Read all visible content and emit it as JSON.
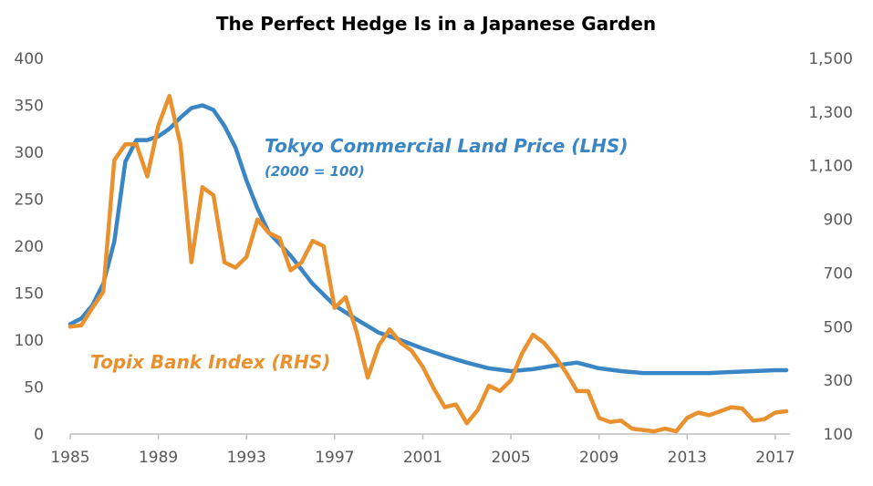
{
  "chart_data": {
    "type": "line",
    "title": "The Perfect Hedge Is in a Japanese Garden",
    "x_ticks": [
      "1985",
      "1989",
      "1993",
      "1997",
      "2001",
      "2005",
      "2009",
      "2013",
      "2017"
    ],
    "y_left_ticks": [
      "0",
      "50",
      "100",
      "150",
      "200",
      "250",
      "300",
      "350",
      "400"
    ],
    "y_right_ticks": [
      "100",
      "300",
      "500",
      "700",
      "900",
      "1,100",
      "1,300",
      "1,500"
    ],
    "y_left_lim": [
      0,
      400
    ],
    "y_right_lim": [
      100,
      1500
    ],
    "x_lim": [
      1985,
      2017.5
    ],
    "grid": false,
    "colors": {
      "land": "#3a86c5",
      "bank": "#e8912e",
      "axis": "#bfbfbf",
      "tick_text": "#595959"
    },
    "series": [
      {
        "name": "Tokyo Commercial Land Price (LHS)",
        "note": "(2000 = 100)",
        "axis": "left",
        "x": [
          1985,
          1985.5,
          1986,
          1986.5,
          1987,
          1987.5,
          1988,
          1988.5,
          1989,
          1989.5,
          1990,
          1990.5,
          1991,
          1991.5,
          1992,
          1992.5,
          1993,
          1993.5,
          1994,
          1995,
          1996,
          1997,
          1998,
          1999,
          2000,
          2001,
          2002,
          2003,
          2004,
          2005,
          2006,
          2007,
          2008,
          2009,
          2010,
          2011,
          2012,
          2013,
          2014,
          2015,
          2016,
          2017,
          2017.5
        ],
        "values": [
          117,
          123,
          137,
          160,
          205,
          290,
          313,
          313,
          317,
          325,
          337,
          347,
          350,
          345,
          328,
          305,
          270,
          240,
          215,
          190,
          160,
          137,
          122,
          108,
          100,
          91,
          83,
          76,
          70,
          67,
          69,
          73,
          76,
          70,
          67,
          65,
          65,
          65,
          65,
          66,
          67,
          68,
          68
        ]
      },
      {
        "name": "Topix Bank Index (RHS)",
        "axis": "right",
        "x": [
          1985,
          1985.5,
          1986,
          1986.5,
          1987,
          1987.5,
          1988,
          1988.5,
          1989,
          1989.5,
          1990,
          1990.5,
          1991,
          1991.5,
          1992,
          1992.5,
          1993,
          1993.5,
          1994,
          1994.5,
          1995,
          1995.5,
          1996,
          1996.5,
          1997,
          1997.5,
          1998,
          1998.5,
          1999,
          1999.5,
          2000,
          2000.5,
          2001,
          2001.5,
          2002,
          2002.5,
          2003,
          2003.5,
          2004,
          2004.5,
          2005,
          2005.5,
          2006,
          2006.5,
          2007,
          2007.5,
          2008,
          2008.5,
          2009,
          2009.5,
          2010,
          2010.5,
          2011,
          2011.5,
          2012,
          2012.5,
          2013,
          2013.5,
          2014,
          2014.5,
          2015,
          2015.5,
          2016,
          2016.5,
          2017,
          2017.5
        ],
        "values": [
          500,
          505,
          570,
          630,
          1120,
          1180,
          1180,
          1060,
          1250,
          1360,
          1180,
          740,
          1020,
          990,
          740,
          720,
          760,
          900,
          850,
          830,
          710,
          740,
          820,
          800,
          570,
          610,
          480,
          310,
          430,
          490,
          440,
          410,
          350,
          270,
          200,
          210,
          140,
          190,
          280,
          260,
          300,
          400,
          470,
          440,
          390,
          330,
          260,
          260,
          160,
          145,
          150,
          120,
          115,
          110,
          120,
          110,
          160,
          180,
          170,
          185,
          200,
          195,
          150,
          155,
          180,
          185
        ]
      }
    ]
  }
}
